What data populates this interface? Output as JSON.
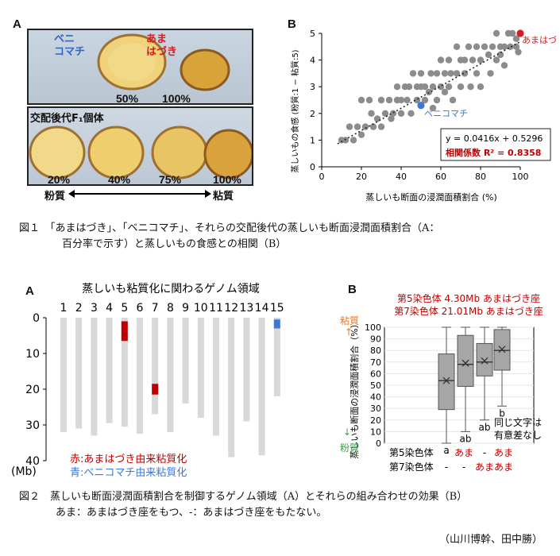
{
  "fig1": {
    "panel_a": {
      "letter": "A",
      "label_beni": "ベニ\nコマチ",
      "label_ama": "あま\nはづき",
      "label_beni_color": "#2f66c8",
      "label_ama_color": "#d81b1b",
      "top_pcts": [
        "50%",
        "100%"
      ],
      "f1_label": "交配後代F₁個体",
      "bottom_pcts": [
        "20%",
        "40%",
        "75%",
        "100%"
      ],
      "axis_left": "粉質",
      "axis_right": "粘質"
    },
    "panel_b": {
      "letter": "B",
      "chart_data": {
        "type": "scatter",
        "xlabel": "蒸しいも断面の浸潤面積割合 (%)",
        "ylabel": "蒸しいもの食感 (粉質:1 − 粘質:5)",
        "xlim": [
          0,
          100
        ],
        "ylim": [
          0,
          5
        ],
        "xticks": [
          "0",
          "20",
          "40",
          "60",
          "80",
          "100"
        ],
        "yticks": [
          "0",
          "1",
          "2",
          "3",
          "4",
          "5"
        ],
        "points": [
          [
            10,
            1
          ],
          [
            12,
            1
          ],
          [
            14,
            1.5
          ],
          [
            16,
            1
          ],
          [
            18,
            1.5
          ],
          [
            20,
            1.2
          ],
          [
            20,
            2.5
          ],
          [
            22,
            1.5
          ],
          [
            24,
            2.5
          ],
          [
            25,
            2
          ],
          [
            26,
            1.5
          ],
          [
            28,
            1.8
          ],
          [
            30,
            2.5
          ],
          [
            30,
            1.5
          ],
          [
            32,
            2
          ],
          [
            34,
            2.5
          ],
          [
            35,
            1.8
          ],
          [
            36,
            2
          ],
          [
            38,
            2.5
          ],
          [
            38,
            3
          ],
          [
            40,
            2
          ],
          [
            40,
            2.5
          ],
          [
            42,
            3
          ],
          [
            43,
            2.5
          ],
          [
            44,
            3
          ],
          [
            45,
            2
          ],
          [
            46,
            3.5
          ],
          [
            48,
            2.5
          ],
          [
            48,
            3
          ],
          [
            50,
            3
          ],
          [
            50,
            3.5
          ],
          [
            52,
            2.5
          ],
          [
            52,
            3
          ],
          [
            54,
            2.8
          ],
          [
            55,
            3.5
          ],
          [
            56,
            2.2
          ],
          [
            56,
            3
          ],
          [
            58,
            3.5
          ],
          [
            58,
            2.5
          ],
          [
            60,
            3
          ],
          [
            60,
            4
          ],
          [
            62,
            3.5
          ],
          [
            62,
            2.8
          ],
          [
            64,
            4
          ],
          [
            64,
            3
          ],
          [
            65,
            3.5
          ],
          [
            66,
            2.5
          ],
          [
            68,
            3.5
          ],
          [
            68,
            4.5
          ],
          [
            70,
            3
          ],
          [
            70,
            4
          ],
          [
            72,
            3.5
          ],
          [
            72,
            4
          ],
          [
            74,
            4.5
          ],
          [
            75,
            3
          ],
          [
            76,
            4
          ],
          [
            78,
            3.5
          ],
          [
            78,
            4.5
          ],
          [
            80,
            4
          ],
          [
            80,
            3
          ],
          [
            82,
            4.5
          ],
          [
            84,
            4.2
          ],
          [
            85,
            3.5
          ],
          [
            86,
            4.5
          ],
          [
            88,
            4
          ],
          [
            88,
            5
          ],
          [
            90,
            4.5
          ],
          [
            90,
            4.2
          ],
          [
            92,
            4.5
          ],
          [
            92,
            3.8
          ],
          [
            94,
            5
          ],
          [
            95,
            4.5
          ],
          [
            96,
            5
          ],
          [
            98,
            4.8
          ],
          [
            98,
            4.5
          ],
          [
            99,
            4.3
          ]
        ],
        "highlights": [
          {
            "name": "あまはづき",
            "x": 100,
            "y": 5,
            "color": "#d81b1b"
          },
          {
            "name": "ベニコマチ",
            "x": 50,
            "y": 2.3,
            "color": "#3b78d8"
          }
        ],
        "trendline": {
          "slope": 0.0416,
          "intercept": 0.5296
        },
        "equation": "y = 0.0416x + 0.5296",
        "r2_label": "相関係数 R² = 0.8358",
        "r2_color": "#c00000"
      }
    },
    "caption_line1": "図１　「あまはづき」、「ベニコマチ」、それらの交配後代の蒸しいも断面浸潤面積割合（A：",
    "caption_line2": "百分率で示す）と蒸しいもの食感との相関（B）"
  },
  "fig2": {
    "panel_a": {
      "letter": "A",
      "chart_data": {
        "type": "genome_map",
        "title": "蒸しいも粘質化に関わるゲノム領域",
        "ylabel": "(Mb)",
        "ylim": [
          0,
          40
        ],
        "yticks": [
          "0",
          "10",
          "20",
          "30",
          "40"
        ],
        "chromosomes": [
          "1",
          "2",
          "3",
          "4",
          "5",
          "6",
          "7",
          "8",
          "9",
          "10",
          "11",
          "12",
          "13",
          "14",
          "15"
        ],
        "lengths_mb": [
          32,
          31,
          33,
          29.5,
          30.5,
          32.5,
          27,
          32,
          24,
          28,
          33,
          39,
          29,
          38.5,
          22
        ],
        "regions": [
          {
            "chromosome": "5",
            "start_mb": 1,
            "end_mb": 6.5,
            "color": "#c00000"
          },
          {
            "chromosome": "7",
            "start_mb": 18.5,
            "end_mb": 21.5,
            "color": "#c00000"
          },
          {
            "chromosome": "15",
            "start_mb": 0.5,
            "end_mb": 3,
            "color": "#3b78d8"
          }
        ],
        "legend": [
          {
            "label": "赤:あまはづき由来粘質化",
            "color": "#c00000"
          },
          {
            "label": "青:ベニコマチ由来粘質化",
            "color": "#3b78d8"
          }
        ]
      }
    },
    "panel_b": {
      "letter": "B",
      "chart_data": {
        "type": "boxplot",
        "title_line1": "第5染色体 4.30Mb あまはづき座",
        "title_line2": "第7染色体 21.01Mb あまはづき座",
        "title_color": "#c00000",
        "ylabel": "蒸しいも断面の浸潤面積割合（%）",
        "ylim": [
          0,
          100
        ],
        "yticks": [
          "0",
          "10",
          "20",
          "30",
          "40",
          "50",
          "60",
          "70",
          "80",
          "90",
          "100"
        ],
        "top_label": "粘質",
        "bottom_label": "粉質",
        "side_label_color": "#e07a2e",
        "bottom_label_color": "#3aa04a",
        "boxes": [
          {
            "min": 0,
            "q1": 29,
            "median": 54,
            "q3": 77,
            "max": 100,
            "mean": 54,
            "letter": "a"
          },
          {
            "min": 10,
            "q1": 49,
            "median": 68,
            "q3": 93,
            "max": 100,
            "mean": 69,
            "letter": "ab"
          },
          {
            "min": 20,
            "q1": 58,
            "median": 70,
            "q3": 86,
            "max": 100,
            "mean": 71,
            "letter": "ab"
          },
          {
            "min": 32,
            "q1": 63,
            "median": 80,
            "q3": 98,
            "max": 100,
            "mean": 81,
            "letter": "b"
          }
        ],
        "note_line1": "同じ文字は",
        "note_line2": "有意差なし",
        "row1_label": "第5染色体",
        "row2_label": "第7染色体",
        "row1_values": [
          "-",
          "あま",
          "-",
          "あま"
        ],
        "row2_values": [
          "-",
          "-",
          "あま",
          "あま"
        ],
        "ama_color": "#c00000"
      }
    },
    "caption_line1": "図２　蒸しいも断面浸潤面積割合を制御するゲノム領域（A）とそれらの組み合わせの効果（B）",
    "caption_line2": "あま：あまはづき座をもつ、-：あまはづき座をもたない。"
  },
  "credit": "（山川博幹、田中勝）"
}
